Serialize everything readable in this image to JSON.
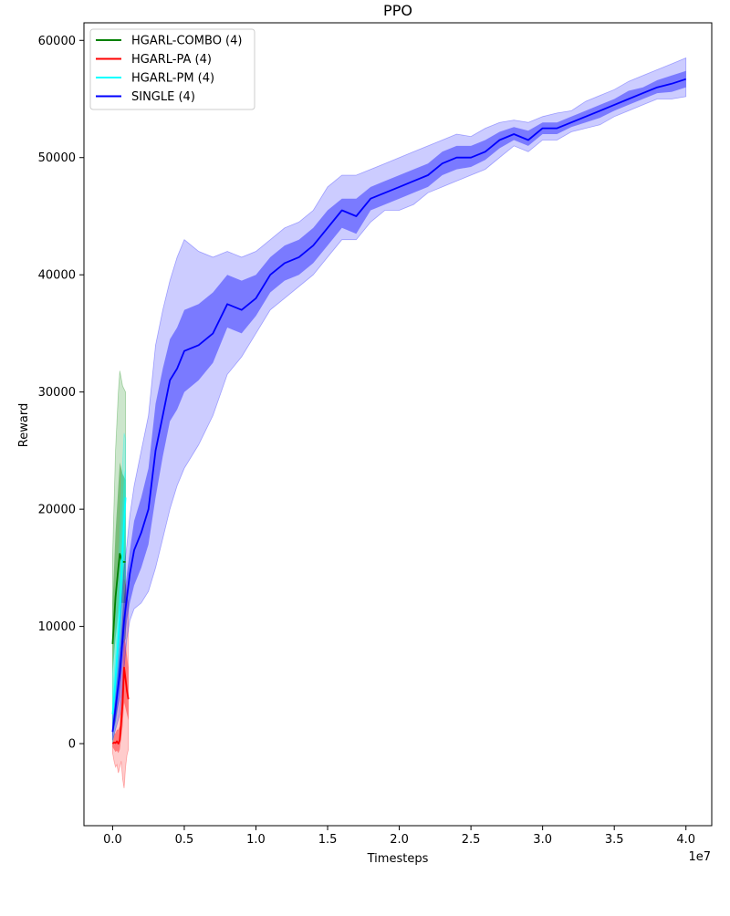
{
  "chart_data": {
    "type": "line",
    "title": "PPO",
    "xlabel": "Timesteps",
    "ylabel": "Reward",
    "x_offset_text": "1e7",
    "xlim": [
      -0.2,
      4.18
    ],
    "ylim": [
      -7000,
      61500
    ],
    "x_ticks": [
      0.0,
      0.5,
      1.0,
      1.5,
      2.0,
      2.5,
      3.0,
      3.5,
      4.0
    ],
    "x_tick_labels": [
      "0.0",
      "0.5",
      "1.0",
      "1.5",
      "2.0",
      "2.5",
      "3.0",
      "3.5",
      "4.0"
    ],
    "y_ticks": [
      0,
      10000,
      20000,
      30000,
      40000,
      50000,
      60000
    ],
    "y_tick_labels": [
      "0",
      "10000",
      "20000",
      "30000",
      "40000",
      "50000",
      "60000"
    ],
    "grid": false,
    "legend_position": "top-left",
    "legend": [
      "HGARL-COMBO (4)",
      "HGARL-PA (4)",
      "HGARL-PM (4)",
      "SINGLE (4)"
    ],
    "series": [
      {
        "name": "HGARL-COMBO (4)",
        "color": "#008000",
        "x": [
          0.0,
          0.02,
          0.04,
          0.05,
          0.07,
          0.09
        ],
        "mean": [
          8500,
          12500,
          15000,
          16200,
          15500,
          15500
        ],
        "inner_low": [
          6000,
          9000,
          11000,
          12000,
          12000,
          12000
        ],
        "inner_high": [
          12000,
          18000,
          22000,
          24000,
          23000,
          22500
        ],
        "outer_low": [
          1000,
          2000,
          5000,
          8000,
          8500,
          9000
        ],
        "outer_high": [
          16000,
          25000,
          30000,
          31800,
          30500,
          30000
        ]
      },
      {
        "name": "HGARL-PA (4)",
        "color": "#ff0000",
        "x": [
          0.0,
          0.01,
          0.02,
          0.03,
          0.04,
          0.05,
          0.06,
          0.07,
          0.08,
          0.09,
          0.1,
          0.11
        ],
        "mean": [
          0,
          100,
          50,
          200,
          0,
          300,
          1800,
          3500,
          6500,
          5500,
          4500,
          3800
        ],
        "inner_low": [
          -300,
          -500,
          -700,
          -600,
          -800,
          -500,
          500,
          1500,
          3500,
          3000,
          2500,
          2000
        ],
        "inner_high": [
          400,
          800,
          900,
          1200,
          1200,
          1500,
          3800,
          6500,
          9000,
          8500,
          7500,
          6500
        ],
        "outer_low": [
          -800,
          -1500,
          -2000,
          -1800,
          -2500,
          -2000,
          -1500,
          -3000,
          -3800,
          -2000,
          -1000,
          -500
        ],
        "outer_high": [
          1000,
          2000,
          2500,
          3000,
          3500,
          4000,
          7000,
          11000,
          14000,
          13500,
          12500,
          12000
        ]
      },
      {
        "name": "HGARL-PM (4)",
        "color": "#00ffff",
        "x": [
          0.0,
          0.02,
          0.04,
          0.05,
          0.06,
          0.07,
          0.08,
          0.09
        ],
        "mean": [
          2500,
          5500,
          9000,
          11000,
          14000,
          16500,
          19000,
          21000
        ],
        "inner_low": [
          1000,
          3000,
          6000,
          8000,
          10500,
          13000,
          15000,
          16500
        ],
        "inner_high": [
          4500,
          8000,
          12500,
          14500,
          18000,
          20500,
          23000,
          23500
        ],
        "outer_low": [
          0,
          1500,
          4000,
          6000,
          8500,
          11000,
          13000,
          14500
        ],
        "outer_high": [
          6000,
          10000,
          15000,
          17500,
          21000,
          24000,
          26500,
          26000
        ]
      },
      {
        "name": "SINGLE (4)",
        "color": "#0000ff",
        "x": [
          0.0,
          0.05,
          0.08,
          0.1,
          0.12,
          0.15,
          0.2,
          0.25,
          0.3,
          0.35,
          0.4,
          0.45,
          0.5,
          0.6,
          0.7,
          0.8,
          0.9,
          1.0,
          1.1,
          1.2,
          1.3,
          1.4,
          1.5,
          1.6,
          1.7,
          1.8,
          1.9,
          2.0,
          2.1,
          2.2,
          2.3,
          2.4,
          2.5,
          2.6,
          2.7,
          2.8,
          2.9,
          3.0,
          3.1,
          3.2,
          3.3,
          3.4,
          3.5,
          3.6,
          3.7,
          3.8,
          3.9,
          4.0
        ],
        "mean": [
          1000,
          6000,
          10500,
          12500,
          14500,
          16500,
          18000,
          20000,
          25000,
          28000,
          31000,
          32000,
          33500,
          34000,
          35000,
          37500,
          37000,
          38000,
          40000,
          41000,
          41500,
          42500,
          44000,
          45500,
          45000,
          46500,
          47000,
          47500,
          48000,
          48500,
          49500,
          50000,
          50000,
          50500,
          51500,
          52000,
          51500,
          52500,
          52500,
          53000,
          53500,
          54000,
          54500,
          55000,
          55500,
          56000,
          56300,
          56700
        ],
        "inner_low": [
          500,
          4000,
          8500,
          10500,
          12000,
          13500,
          15000,
          17000,
          21000,
          24500,
          27500,
          28500,
          30000,
          31000,
          32500,
          35500,
          35000,
          36500,
          38500,
          39500,
          40000,
          41000,
          42500,
          44000,
          43500,
          45500,
          46000,
          46500,
          47000,
          47500,
          48500,
          49000,
          49200,
          49800,
          50800,
          51500,
          51000,
          52000,
          52000,
          52600,
          53000,
          53400,
          54000,
          54500,
          55000,
          55500,
          55600,
          56000
        ],
        "inner_high": [
          1500,
          8000,
          12500,
          14500,
          16500,
          19000,
          21000,
          23500,
          29000,
          32000,
          34500,
          35500,
          37000,
          37500,
          38500,
          40000,
          39500,
          40000,
          41500,
          42500,
          43000,
          44000,
          45500,
          46500,
          46500,
          47500,
          48000,
          48500,
          49000,
          49500,
          50500,
          51000,
          51000,
          51500,
          52200,
          52600,
          52300,
          53000,
          53000,
          53500,
          54000,
          54500,
          55000,
          55700,
          56000,
          56600,
          57000,
          57400
        ],
        "outer_low": [
          300,
          2500,
          6500,
          9000,
          10500,
          11500,
          12000,
          13000,
          15000,
          17500,
          20000,
          22000,
          23500,
          25500,
          28000,
          31500,
          33000,
          35000,
          37000,
          38000,
          39000,
          40000,
          41500,
          43000,
          43000,
          44500,
          45500,
          45500,
          46000,
          47000,
          47500,
          48000,
          48500,
          49000,
          50000,
          51000,
          50500,
          51500,
          51500,
          52200,
          52500,
          52800,
          53500,
          54000,
          54500,
          55000,
          55000,
          55200
        ],
        "outer_high": [
          2000,
          10000,
          15000,
          17000,
          19500,
          22000,
          25000,
          28000,
          34000,
          37000,
          39500,
          41500,
          43000,
          42000,
          41500,
          42000,
          41500,
          42000,
          43000,
          44000,
          44500,
          45500,
          47500,
          48500,
          48500,
          49000,
          49500,
          50000,
          50500,
          51000,
          51500,
          52000,
          51800,
          52500,
          53000,
          53200,
          53000,
          53500,
          53800,
          54000,
          54800,
          55300,
          55800,
          56500,
          57000,
          57500,
          58000,
          58500
        ]
      }
    ]
  }
}
